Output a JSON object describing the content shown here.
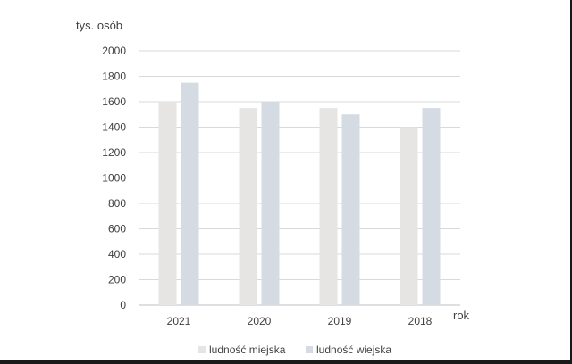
{
  "chart_data": {
    "type": "bar",
    "categories": [
      "2021",
      "2020",
      "2019",
      "2018"
    ],
    "series": [
      {
        "name": "ludność miejska",
        "values": [
          1600,
          1550,
          1550,
          1400
        ],
        "color": "#e7e4e4"
      },
      {
        "name": "ludność wiejska",
        "values": [
          1750,
          1600,
          1500,
          1550
        ],
        "color": "#d5dbe3"
      }
    ],
    "ylabel": "tys. osób",
    "xlabel": "rok",
    "ylim": [
      0,
      2000
    ],
    "yticks": [
      0,
      200,
      400,
      600,
      800,
      1000,
      1200,
      1400,
      1600,
      1800,
      2000
    ],
    "grid": true,
    "legend_position": "bottom"
  }
}
